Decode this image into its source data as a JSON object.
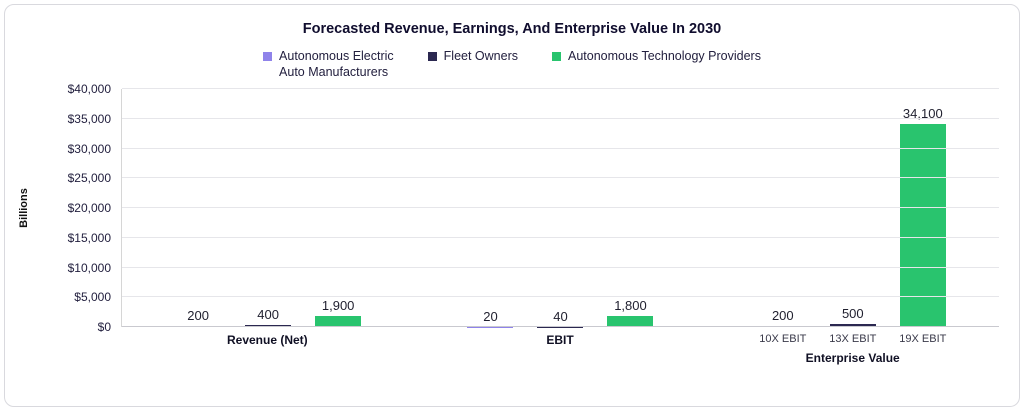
{
  "chart_data": {
    "type": "bar",
    "title": "Forecasted Revenue, Earnings, And Enterprise Value In 2030",
    "ylabel": "Billions",
    "ylim": [
      0,
      40000
    ],
    "ytick_step": 5000,
    "ytick_labels": [
      "$0",
      "$5,000",
      "$10,000",
      "$15,000",
      "$20,000",
      "$25,000",
      "$30,000",
      "$35,000",
      "$40,000"
    ],
    "grid": true,
    "legend_position": "top",
    "categories": [
      "Revenue (Net)",
      "EBIT",
      "Enterprise Value"
    ],
    "series": [
      {
        "name": "Autonomous Electric Auto Manufacturers",
        "legend_lines": [
          "Autonomous Electric",
          "Auto Manufacturers"
        ],
        "color": "#8F83EA",
        "values": [
          200,
          20,
          200
        ]
      },
      {
        "name": "Fleet Owners",
        "legend_lines": [
          "Fleet Owners"
        ],
        "color": "#2B2850",
        "values": [
          400,
          40,
          500
        ]
      },
      {
        "name": "Autonomous Technology Providers",
        "legend_lines": [
          "Autonomous Technology Providers"
        ],
        "color": "#29C46E",
        "values": [
          1900,
          1800,
          34100
        ]
      }
    ],
    "value_labels": [
      [
        "200",
        "400",
        "1,900"
      ],
      [
        "20",
        "40",
        "1,800"
      ],
      [
        "200",
        "500",
        "34,100"
      ]
    ],
    "bar_sublabels": [
      [
        null,
        null,
        null
      ],
      [
        null,
        null,
        null
      ],
      [
        "10X EBIT",
        "13X EBIT",
        "19X EBIT"
      ]
    ]
  }
}
